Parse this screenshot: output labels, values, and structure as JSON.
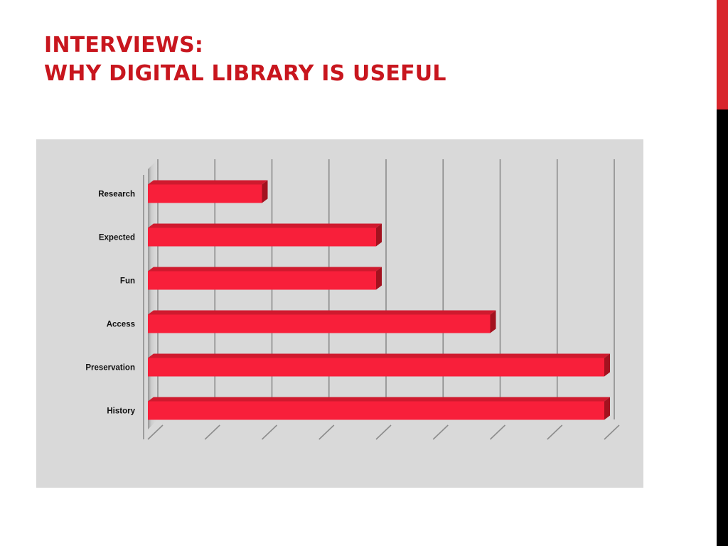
{
  "slide": {
    "title_line1": "INTERVIEWS:",
    "title_line2": "WHY DIGITAL LIBRARY IS USEFUL"
  },
  "colors": {
    "title": "#c8161e",
    "bar_front": "#f81f3a",
    "bar_top": "#cf1a2e",
    "bar_side": "#a3121f",
    "panel_background": "#d9d9d9",
    "accent_bar_red": "#d8262c",
    "accent_bar_black": "#000000"
  },
  "chart_data": {
    "type": "bar",
    "orientation": "horizontal",
    "style": "3d",
    "categories": [
      "Research",
      "Expected",
      "Fun",
      "Access",
      "Preservation",
      "History"
    ],
    "values": [
      2,
      4,
      4,
      6,
      8,
      8
    ],
    "xlim": [
      0,
      8
    ],
    "x_tick_labels_shown": false,
    "grid": true,
    "legend": "none",
    "title": "",
    "xlabel": "",
    "ylabel": ""
  }
}
